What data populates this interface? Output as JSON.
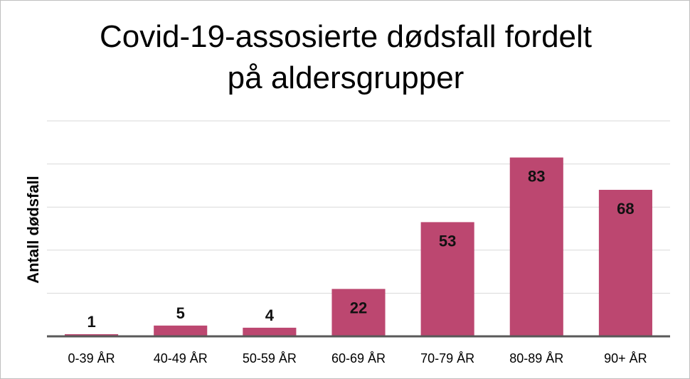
{
  "chart_data": {
    "type": "bar",
    "title_lines": [
      "Covid-19-assosierte dødsfall fordelt",
      "på aldersgrupper"
    ],
    "xlabel": "",
    "ylabel": "Antall dødsfall",
    "categories": [
      "0-39 ÅR",
      "40-49 ÅR",
      "50-59 ÅR",
      "60-69 ÅR",
      "70-79 ÅR",
      "80-89 ÅR",
      "90+ ÅR"
    ],
    "values": [
      1,
      5,
      4,
      22,
      53,
      83,
      68
    ],
    "ylim": [
      0,
      100
    ],
    "grid_step": 20,
    "grid": true,
    "legend": "none",
    "bar_color": "#BC4770",
    "gridline_color": "#d9d9d9",
    "axis_color": "#595959"
  }
}
